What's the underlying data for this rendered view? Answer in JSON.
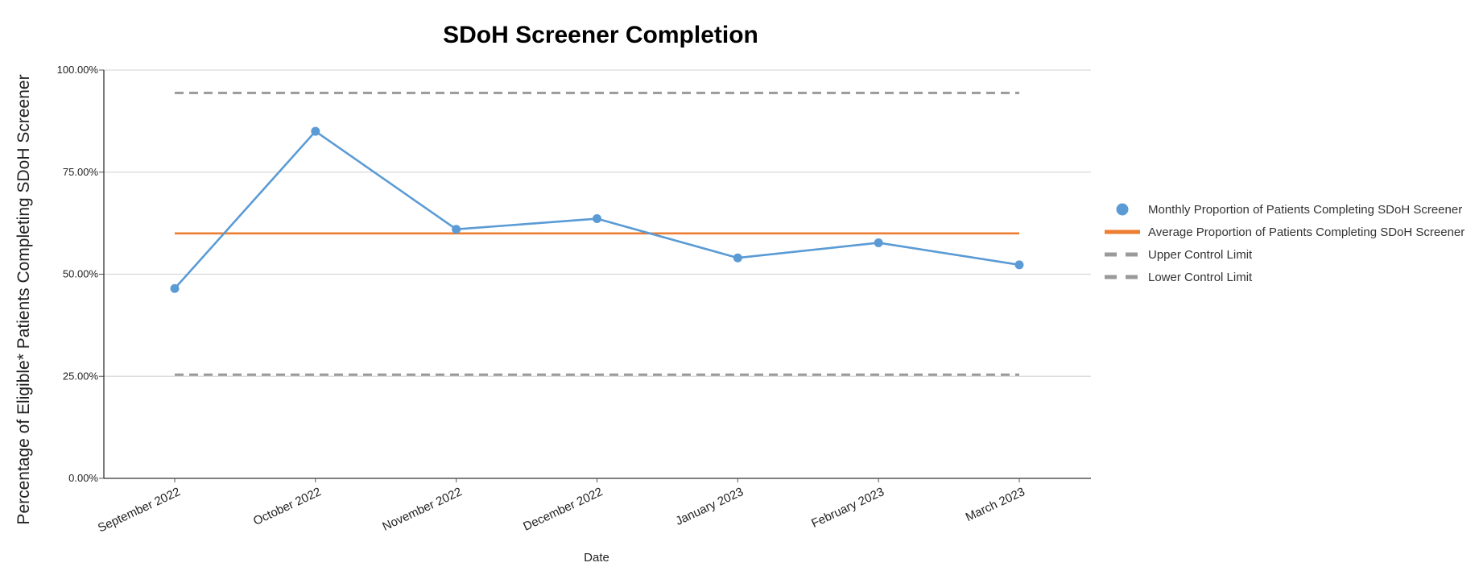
{
  "chart_data": {
    "type": "line",
    "title": "SDoH Screener Completion",
    "xlabel": "Date",
    "ylabel": "Percentage of Eligible* Patients Completing SDoH Screener",
    "ylim": [
      0,
      100
    ],
    "y_ticks": [
      "0.00%",
      "25.00%",
      "50.00%",
      "75.00%",
      "100.00%"
    ],
    "y_tick_values": [
      0,
      25,
      50,
      75,
      100
    ],
    "grid": true,
    "legend_position": "right",
    "categories": [
      "September 2022",
      "October 2022",
      "November 2022",
      "December 2022",
      "January 2023",
      "February 2023",
      "March 2023"
    ],
    "series": [
      {
        "name": "Monthly Proportion of Patients Completing SDoH Screener",
        "style": "line-markers",
        "color": "#5b9bd5",
        "values": [
          46.5,
          85.0,
          61.0,
          63.6,
          54.0,
          57.7,
          52.3
        ]
      },
      {
        "name": "Average Proportion of Patients Completing SDoH Screener",
        "style": "line",
        "color": "#ed7d31",
        "values": [
          60.0,
          60.0,
          60.0,
          60.0,
          60.0,
          60.0,
          60.0
        ]
      },
      {
        "name": "Upper Control Limit",
        "style": "dashed",
        "color": "#9a9a9a",
        "values": [
          94.4,
          94.4,
          94.4,
          94.4,
          94.4,
          94.4,
          94.4
        ]
      },
      {
        "name": "Lower Control Limit",
        "style": "dashed",
        "color": "#9a9a9a",
        "values": [
          25.4,
          25.4,
          25.4,
          25.4,
          25.4,
          25.4,
          25.4
        ]
      }
    ]
  }
}
